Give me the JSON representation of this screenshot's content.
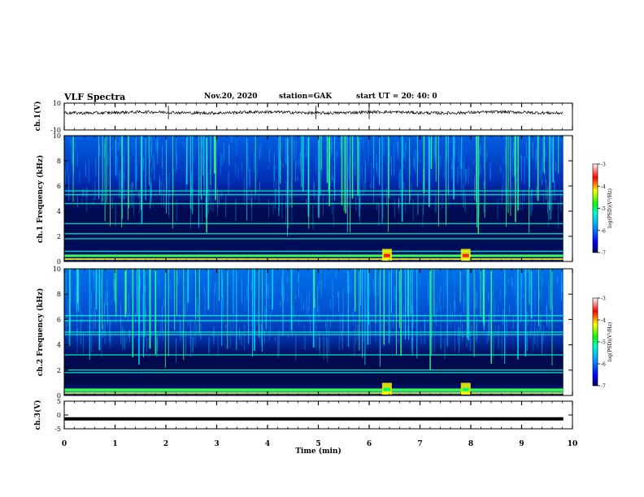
{
  "header": {
    "title": "VLF Spectra",
    "date": "Nov.20, 2020",
    "station": "station=GAK",
    "start": "start  UT =   20: 40: 0"
  },
  "chart_data": [
    {
      "type": "line",
      "panel": "ch1-waveform",
      "ylabel": "ch.1(V)",
      "ylim": [
        -10,
        10
      ],
      "yticks": [
        "10",
        "-10"
      ],
      "xlim": [
        0,
        10
      ],
      "series": [
        {
          "values": "noisy waveform centered near 3 V, amplitude about ±1 V, extending from 0 to 9.8 min"
        }
      ]
    },
    {
      "type": "heatmap",
      "panel": "ch1-spectrogram",
      "ylabel": "ch.1 Frequency (kHz)",
      "ylim": [
        0,
        10
      ],
      "yticks": [
        "0",
        "2",
        "4",
        "6",
        "8",
        "10"
      ],
      "xlim": [
        0,
        10
      ],
      "bands_khz": [
        0.2,
        0.5,
        0.8,
        1.8,
        2.2,
        3.0,
        4.6,
        5.3,
        5.6
      ],
      "strong_events_min": [
        6.35,
        7.9
      ]
    },
    {
      "type": "heatmap",
      "panel": "ch2-spectrogram",
      "ylabel": "ch.2 Frequency (kHz)",
      "ylim": [
        0,
        10
      ],
      "yticks": [
        "0",
        "2",
        "4",
        "6",
        "8",
        "10"
      ],
      "xlim": [
        0,
        10
      ],
      "bands_khz": [
        0.3,
        1.8,
        2.0,
        3.2,
        4.8,
        5.0,
        5.9,
        6.3
      ],
      "strong_events_min": [
        6.35,
        7.9
      ]
    },
    {
      "type": "line",
      "panel": "ch3-waveform",
      "ylabel": "ch.3(V)",
      "ylim": [
        -5,
        5
      ],
      "yticks": [
        "5",
        "0",
        "-5"
      ],
      "xlim": [
        0,
        10
      ],
      "series": [
        {
          "values": "flat line at about -1.4 V from 0 to 9.8 min"
        }
      ]
    }
  ],
  "x_axis": {
    "label": "Time  (min)",
    "ticks": [
      "0",
      "1",
      "2",
      "3",
      "4",
      "5",
      "6",
      "7",
      "8",
      "9",
      "10"
    ]
  },
  "colorbars": [
    {
      "label": "log(PSD)(V²/Hz)",
      "ticks": [
        "-3",
        "-4",
        "-5",
        "-6",
        "-7"
      ],
      "range": [
        -7,
        -3
      ]
    },
    {
      "label": "log(PSD)(V²/Hz)",
      "ticks": [
        "-3",
        "-4",
        "-5",
        "-6",
        "-7"
      ],
      "range": [
        -7,
        -3
      ]
    }
  ],
  "colors": {
    "background": "#ffffff",
    "axes": "#000000",
    "trace": "#000000"
  }
}
